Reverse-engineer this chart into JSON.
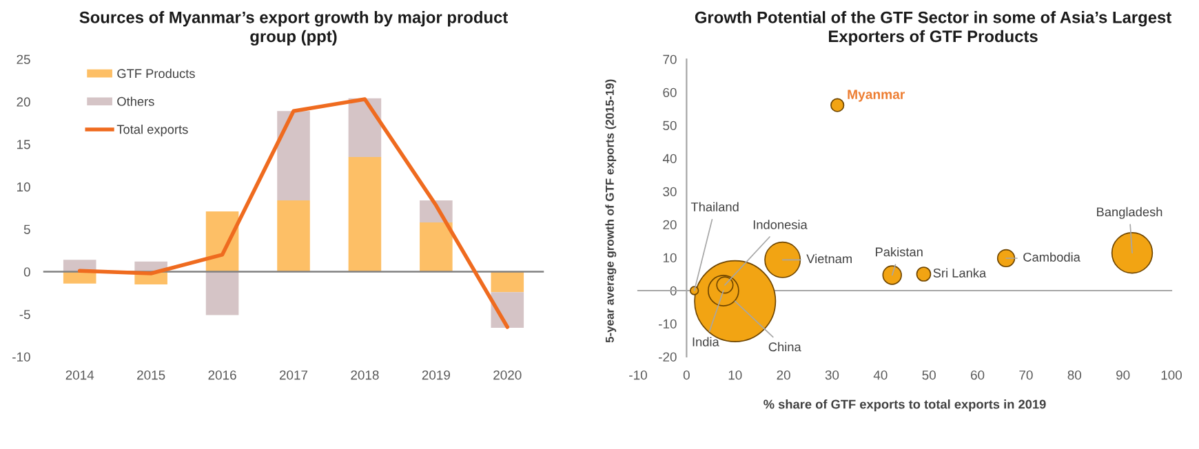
{
  "chart_data": [
    {
      "type": "bar",
      "title": "Sources of Myanmar’s export growth by major product group (ppt)",
      "categories": [
        "2014",
        "2015",
        "2016",
        "2017",
        "2018",
        "2019",
        "2020"
      ],
      "stacked": true,
      "series": [
        {
          "name": "GTF Products",
          "color": "#fdbf66",
          "values": [
            -1.4,
            -1.5,
            7.1,
            8.4,
            13.5,
            5.8,
            -2.4
          ]
        },
        {
          "name": "Others",
          "color": "#d5c4c6",
          "values": [
            1.4,
            1.2,
            -5.1,
            10.5,
            6.9,
            2.6,
            -4.2
          ]
        },
        {
          "name": "Total exports",
          "type": "line",
          "color": "#ef6b1f",
          "values": [
            0.1,
            -0.2,
            2.0,
            18.9,
            20.3,
            7.8,
            -6.5
          ]
        }
      ],
      "ylim": [
        -10,
        25
      ],
      "yticks": [
        -10,
        -5,
        0,
        5,
        10,
        15,
        20,
        25
      ],
      "legend": "top left"
    },
    {
      "type": "bubble",
      "title": "Growth Potential of the GTF Sector in some of Asia’s Largest Exporters of GTF Products",
      "xlabel": "% share of GTF exports to total exports in 2019",
      "ylabel": "5-year average growth of GTF exports (2015-19)",
      "series": [
        {
          "color": "#f2a413",
          "x": [
            10.0,
            7.6,
            7.9,
            1.6,
            19.8,
            31.1,
            42.4,
            48.9,
            65.9,
            91.9
          ],
          "values": [
            -3.2,
            0.0,
            1.7,
            0.0,
            9.3,
            56.1,
            4.7,
            5.0,
            9.8,
            11.4
          ],
          "sizes": [
            1,
            0.141,
            0.04,
            0.01,
            0.191,
            0.025,
            0.052,
            0.029,
            0.044,
            0.25
          ]
        }
      ],
      "annotations": [
        {
          "text": "China",
          "x": 10.0,
          "y": -3.2
        },
        {
          "text": "India",
          "x": 7.6,
          "y": 0.0
        },
        {
          "text": "Indonesia",
          "x": 7.9,
          "y": 1.7
        },
        {
          "text": "Thailand",
          "x": 1.6,
          "y": 0.0
        },
        {
          "text": "Vietnam",
          "x": 19.8,
          "y": 9.3
        },
        {
          "text": "Myanmar",
          "x": 31.1,
          "y": 56.1
        },
        {
          "text": "Pakistan",
          "x": 42.4,
          "y": 4.7
        },
        {
          "text": "Sri Lanka",
          "x": 48.9,
          "y": 5.0
        },
        {
          "text": "Cambodia",
          "x": 65.9,
          "y": 9.8
        },
        {
          "text": "Bangladesh",
          "x": 91.9,
          "y": 11.4
        }
      ],
      "xlim": [
        -10,
        100
      ],
      "xticks": [
        -10,
        0,
        10,
        20,
        30,
        40,
        50,
        60,
        70,
        80,
        90,
        100
      ],
      "ylim": [
        -20,
        70
      ],
      "yticks": [
        -20,
        -10,
        0,
        10,
        20,
        30,
        40,
        50,
        60,
        70
      ]
    }
  ]
}
